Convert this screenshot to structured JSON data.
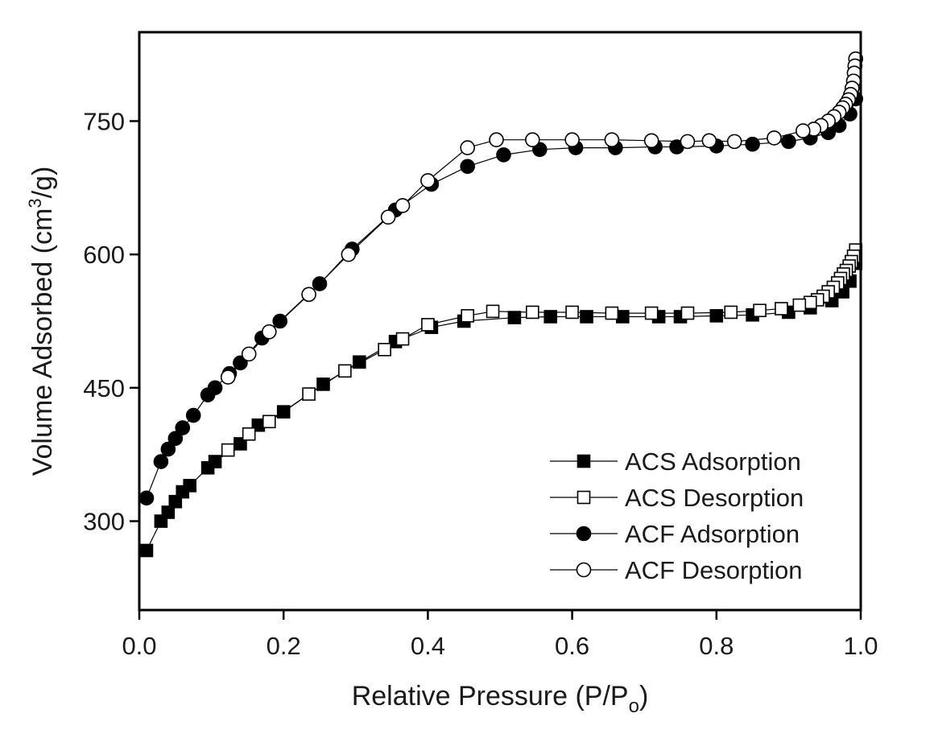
{
  "chart_data": {
    "type": "scatter",
    "title": "",
    "xlabel": {
      "main": "Relative Pressure (P/P",
      "sub": "o",
      "end": ")"
    },
    "ylabel": {
      "main": "Volume Adsorbed (cm",
      "sup": "3",
      "end": "/g)"
    },
    "xlim": [
      0.0,
      1.0
    ],
    "ylim": [
      200,
      850
    ],
    "xticks": [
      0.0,
      0.2,
      0.4,
      0.6,
      0.8,
      1.0
    ],
    "xtick_labels": [
      "0.0",
      "0.2",
      "0.4",
      "0.6",
      "0.8",
      "1.0"
    ],
    "yticks": [
      300,
      450,
      600,
      750
    ],
    "ytick_labels": [
      "300",
      "450",
      "600",
      "750"
    ],
    "grid": false,
    "legend_position": "bottom-right",
    "line_color": "#000000",
    "series": [
      {
        "name": "ACS Adsorption",
        "marker": "square-filled",
        "x": [
          0.01,
          0.03,
          0.04,
          0.05,
          0.06,
          0.07,
          0.095,
          0.105,
          0.14,
          0.165,
          0.2,
          0.255,
          0.305,
          0.355,
          0.405,
          0.45,
          0.52,
          0.57,
          0.62,
          0.67,
          0.72,
          0.75,
          0.8,
          0.85,
          0.9,
          0.93,
          0.96,
          0.975,
          0.985,
          0.993
        ],
        "y": [
          267,
          300,
          310,
          322,
          333,
          340,
          360,
          367,
          387,
          408,
          423,
          454,
          479,
          502,
          518,
          525,
          529,
          530,
          530,
          530,
          530,
          530,
          531,
          532,
          535,
          540,
          548,
          558,
          570,
          590
        ]
      },
      {
        "name": "ACS Desorption",
        "marker": "square-open",
        "x": [
          0.993,
          0.99,
          0.987,
          0.984,
          0.98,
          0.976,
          0.972,
          0.968,
          0.962,
          0.955,
          0.948,
          0.94,
          0.93,
          0.915,
          0.89,
          0.86,
          0.82,
          0.76,
          0.71,
          0.655,
          0.6,
          0.545,
          0.49,
          0.455,
          0.4,
          0.365,
          0.34,
          0.285,
          0.235,
          0.18,
          0.152,
          0.123
        ],
        "y": [
          605,
          598,
          592,
          587,
          582,
          578,
          573,
          568,
          563,
          558,
          553,
          549,
          546,
          543,
          539,
          537,
          535,
          534,
          534,
          534,
          535,
          535,
          536,
          531,
          521,
          505,
          493,
          469,
          443,
          412,
          398,
          380
        ]
      },
      {
        "name": "ACF Adsorption",
        "marker": "circle-filled",
        "x": [
          0.01,
          0.03,
          0.04,
          0.05,
          0.06,
          0.075,
          0.095,
          0.105,
          0.125,
          0.14,
          0.17,
          0.195,
          0.25,
          0.295,
          0.355,
          0.405,
          0.455,
          0.505,
          0.555,
          0.605,
          0.66,
          0.715,
          0.745,
          0.8,
          0.85,
          0.9,
          0.93,
          0.955,
          0.97,
          0.985,
          0.993
        ],
        "y": [
          326,
          367,
          381,
          393,
          405,
          419,
          442,
          450,
          466,
          478,
          506,
          525,
          567,
          606,
          650,
          679,
          699,
          712,
          718,
          720,
          720,
          721,
          721,
          722,
          724,
          727,
          731,
          737,
          745,
          758,
          775
        ]
      },
      {
        "name": "ACF Desorption",
        "marker": "circle-open",
        "x": [
          0.993,
          0.992,
          0.991,
          0.99,
          0.988,
          0.986,
          0.983,
          0.979,
          0.975,
          0.97,
          0.963,
          0.955,
          0.945,
          0.935,
          0.92,
          0.88,
          0.825,
          0.79,
          0.76,
          0.71,
          0.655,
          0.6,
          0.545,
          0.495,
          0.455,
          0.4,
          0.365,
          0.345,
          0.29,
          0.235,
          0.18,
          0.152,
          0.123
        ],
        "y": [
          820,
          812,
          804,
          795,
          787,
          780,
          774,
          769,
          765,
          760,
          755,
          750,
          745,
          741,
          739,
          731,
          727,
          728,
          727,
          728,
          729,
          729,
          729,
          729,
          720,
          683,
          655,
          642,
          600,
          555,
          513,
          488,
          462
        ]
      }
    ]
  }
}
